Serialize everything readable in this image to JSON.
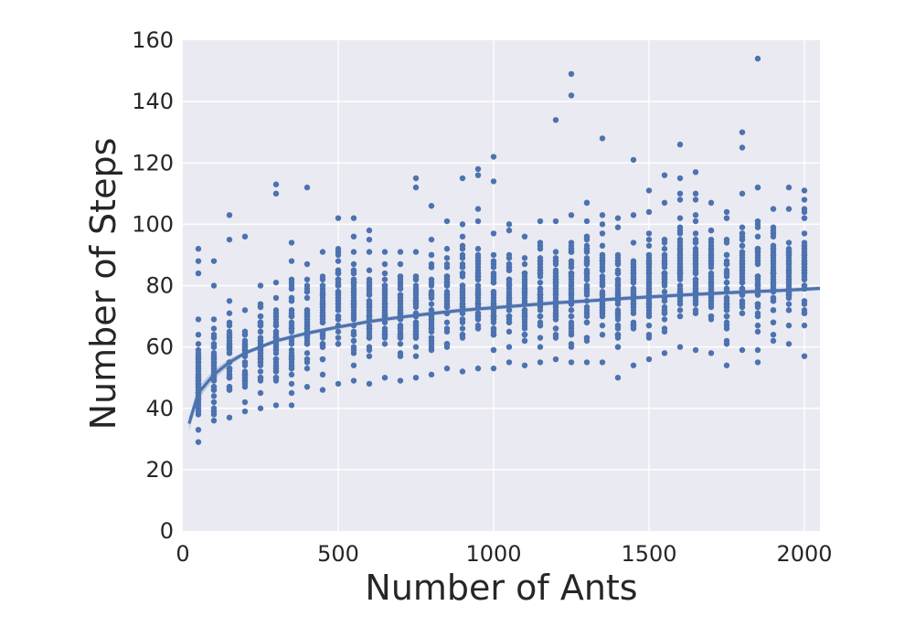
{
  "chart_data": {
    "type": "scatter",
    "xlabel": "Number of Ants",
    "ylabel": "Number of Steps",
    "xlim": [
      0,
      2050
    ],
    "ylim": [
      0,
      160
    ],
    "x_ticks": [
      0,
      500,
      1000,
      1500,
      2000
    ],
    "y_ticks": [
      0,
      20,
      40,
      60,
      80,
      100,
      120,
      140,
      160
    ],
    "grid": true,
    "legend": "none",
    "colors": {
      "background": "#eaeaf2",
      "grid": "#ffffff",
      "points": "#4c72b0",
      "fit": "#4c72b0"
    },
    "x_groups": [
      50,
      100,
      150,
      200,
      250,
      300,
      350,
      400,
      450,
      500,
      550,
      600,
      650,
      700,
      750,
      800,
      850,
      900,
      950,
      1000,
      1050,
      1100,
      1150,
      1200,
      1250,
      1300,
      1350,
      1400,
      1450,
      1500,
      1550,
      1600,
      1650,
      1700,
      1750,
      1800,
      1850,
      1900,
      1950,
      2000
    ],
    "group_ranges": [
      [
        29,
        69
      ],
      [
        36,
        69
      ],
      [
        37,
        75
      ],
      [
        39,
        72
      ],
      [
        40,
        80
      ],
      [
        41,
        81
      ],
      [
        41,
        94
      ],
      [
        47,
        87
      ],
      [
        46,
        91
      ],
      [
        48,
        102
      ],
      [
        49,
        102
      ],
      [
        48,
        98
      ],
      [
        50,
        91
      ],
      [
        49,
        91
      ],
      [
        50,
        91
      ],
      [
        51,
        95
      ],
      [
        53,
        101
      ],
      [
        52,
        100
      ],
      [
        53,
        101
      ],
      [
        53,
        97
      ],
      [
        55,
        100
      ],
      [
        54,
        96
      ],
      [
        55,
        101
      ],
      [
        56,
        101
      ],
      [
        55,
        103
      ],
      [
        55,
        107
      ],
      [
        55,
        103
      ],
      [
        50,
        102
      ],
      [
        54,
        103
      ],
      [
        56,
        104
      ],
      [
        58,
        107
      ],
      [
        60,
        110
      ],
      [
        59,
        108
      ],
      [
        58,
        107
      ],
      [
        54,
        104
      ],
      [
        59,
        110
      ],
      [
        55,
        112
      ],
      [
        62,
        105
      ],
      [
        61,
        105
      ],
      [
        57,
        111
      ]
    ],
    "outliers": [
      {
        "x": 50,
        "y": 92
      },
      {
        "x": 50,
        "y": 88
      },
      {
        "x": 50,
        "y": 84
      },
      {
        "x": 100,
        "y": 88
      },
      {
        "x": 100,
        "y": 80
      },
      {
        "x": 150,
        "y": 103
      },
      {
        "x": 150,
        "y": 95
      },
      {
        "x": 200,
        "y": 96
      },
      {
        "x": 300,
        "y": 113
      },
      {
        "x": 300,
        "y": 110
      },
      {
        "x": 400,
        "y": 112
      },
      {
        "x": 750,
        "y": 115
      },
      {
        "x": 750,
        "y": 112
      },
      {
        "x": 800,
        "y": 106
      },
      {
        "x": 900,
        "y": 115
      },
      {
        "x": 950,
        "y": 118
      },
      {
        "x": 950,
        "y": 116
      },
      {
        "x": 950,
        "y": 105
      },
      {
        "x": 1000,
        "y": 122
      },
      {
        "x": 1000,
        "y": 114
      },
      {
        "x": 1200,
        "y": 134
      },
      {
        "x": 1250,
        "y": 149
      },
      {
        "x": 1250,
        "y": 142
      },
      {
        "x": 1300,
        "y": 107
      },
      {
        "x": 1350,
        "y": 128
      },
      {
        "x": 1450,
        "y": 121
      },
      {
        "x": 1500,
        "y": 111
      },
      {
        "x": 1550,
        "y": 116
      },
      {
        "x": 1600,
        "y": 126
      },
      {
        "x": 1600,
        "y": 115
      },
      {
        "x": 1600,
        "y": 108
      },
      {
        "x": 1650,
        "y": 117
      },
      {
        "x": 1650,
        "y": 110
      },
      {
        "x": 1800,
        "y": 130
      },
      {
        "x": 1800,
        "y": 125
      },
      {
        "x": 1850,
        "y": 154
      },
      {
        "x": 1850,
        "y": 112
      },
      {
        "x": 1850,
        "y": 99
      },
      {
        "x": 1950,
        "y": 112
      },
      {
        "x": 2000,
        "y": 108
      }
    ],
    "fit_line": {
      "x": [
        20,
        50,
        100,
        150,
        200,
        300,
        400,
        500,
        600,
        700,
        800,
        900,
        1000,
        1100,
        1200,
        1300,
        1400,
        1500,
        1600,
        1700,
        1800,
        1900,
        2000,
        2050
      ],
      "y": [
        35,
        45,
        51,
        55,
        58,
        62,
        64.5,
        66.5,
        68.3,
        69.7,
        70.9,
        72,
        72.8,
        73.6,
        74.4,
        75,
        75.7,
        76.3,
        76.9,
        77.4,
        77.9,
        78.3,
        78.8,
        79.1
      ]
    }
  }
}
